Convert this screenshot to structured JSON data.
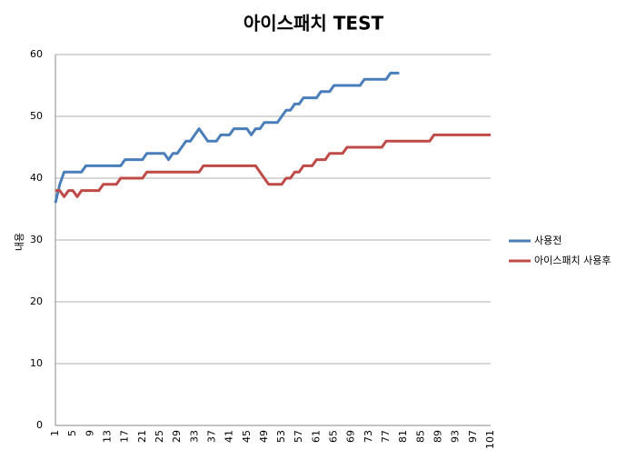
{
  "chart_data": {
    "type": "line",
    "title": "아이스패치 TEST",
    "y_label": "내용",
    "categories": [
      1,
      null,
      null,
      null,
      5,
      null,
      null,
      null,
      9,
      null,
      null,
      null,
      13,
      null,
      null,
      null,
      17,
      null,
      null,
      null,
      21,
      null,
      null,
      null,
      25,
      null,
      null,
      null,
      29,
      null,
      null,
      null,
      33,
      null,
      null,
      null,
      37,
      null,
      null,
      null,
      41,
      null,
      null,
      null,
      45,
      null,
      null,
      null,
      49,
      null,
      null,
      null,
      53,
      null,
      null,
      null,
      57,
      null,
      null,
      null,
      61,
      null,
      null,
      null,
      65,
      null,
      null,
      null,
      69,
      null,
      null,
      null,
      73,
      null,
      null,
      null,
      77,
      null,
      null,
      null,
      81,
      null,
      null,
      null,
      85,
      null,
      null,
      null,
      89,
      null,
      null,
      null,
      93,
      null,
      null,
      null,
      97,
      null,
      null,
      null,
      101
    ],
    "series": [
      {
        "name": "사용전",
        "color": "#4a7ebb",
        "values": [
          36,
          39,
          41,
          41,
          41,
          41,
          41,
          42,
          42,
          42,
          42,
          42,
          42,
          42,
          42,
          42,
          43,
          43,
          43,
          43,
          43,
          44,
          44,
          44,
          44,
          44,
          43,
          44,
          44,
          45,
          46,
          46,
          47,
          48,
          47,
          46,
          46,
          46,
          47,
          47,
          47,
          48,
          48,
          48,
          48,
          47,
          48,
          48,
          49,
          49,
          49,
          49,
          50,
          51,
          51,
          52,
          52,
          53,
          53,
          53,
          53,
          54,
          54,
          54,
          55,
          55,
          55,
          55,
          55,
          55,
          55,
          56,
          56,
          56,
          56,
          56,
          56,
          57,
          57,
          57,
          null,
          null,
          null,
          null,
          null,
          null,
          null,
          null,
          null,
          null,
          null,
          null,
          null,
          null,
          null,
          null,
          null,
          null,
          null,
          null,
          null
        ]
      },
      {
        "name": "아이스패치 사용후",
        "color": "#be4b48",
        "values": [
          38,
          38,
          37,
          38,
          38,
          37,
          38,
          38,
          38,
          38,
          38,
          39,
          39,
          39,
          39,
          40,
          40,
          40,
          40,
          40,
          40,
          41,
          41,
          41,
          41,
          41,
          41,
          41,
          41,
          41,
          41,
          41,
          41,
          41,
          42,
          42,
          42,
          42,
          42,
          42,
          42,
          42,
          42,
          42,
          42,
          42,
          42,
          41,
          40,
          39,
          39,
          39,
          39,
          40,
          40,
          41,
          41,
          42,
          42,
          42,
          43,
          43,
          43,
          44,
          44,
          44,
          44,
          45,
          45,
          45,
          45,
          45,
          45,
          45,
          45,
          45,
          46,
          46,
          46,
          46,
          46,
          46,
          46,
          46,
          46,
          46,
          46,
          47,
          47,
          47,
          47,
          47,
          47,
          47,
          47,
          47,
          47,
          47,
          47,
          47,
          47
        ]
      }
    ],
    "ylim": [
      0,
      60
    ],
    "yticks": [
      0,
      10,
      20,
      30,
      40,
      50,
      60
    ],
    "grid": true,
    "legend": "right"
  }
}
